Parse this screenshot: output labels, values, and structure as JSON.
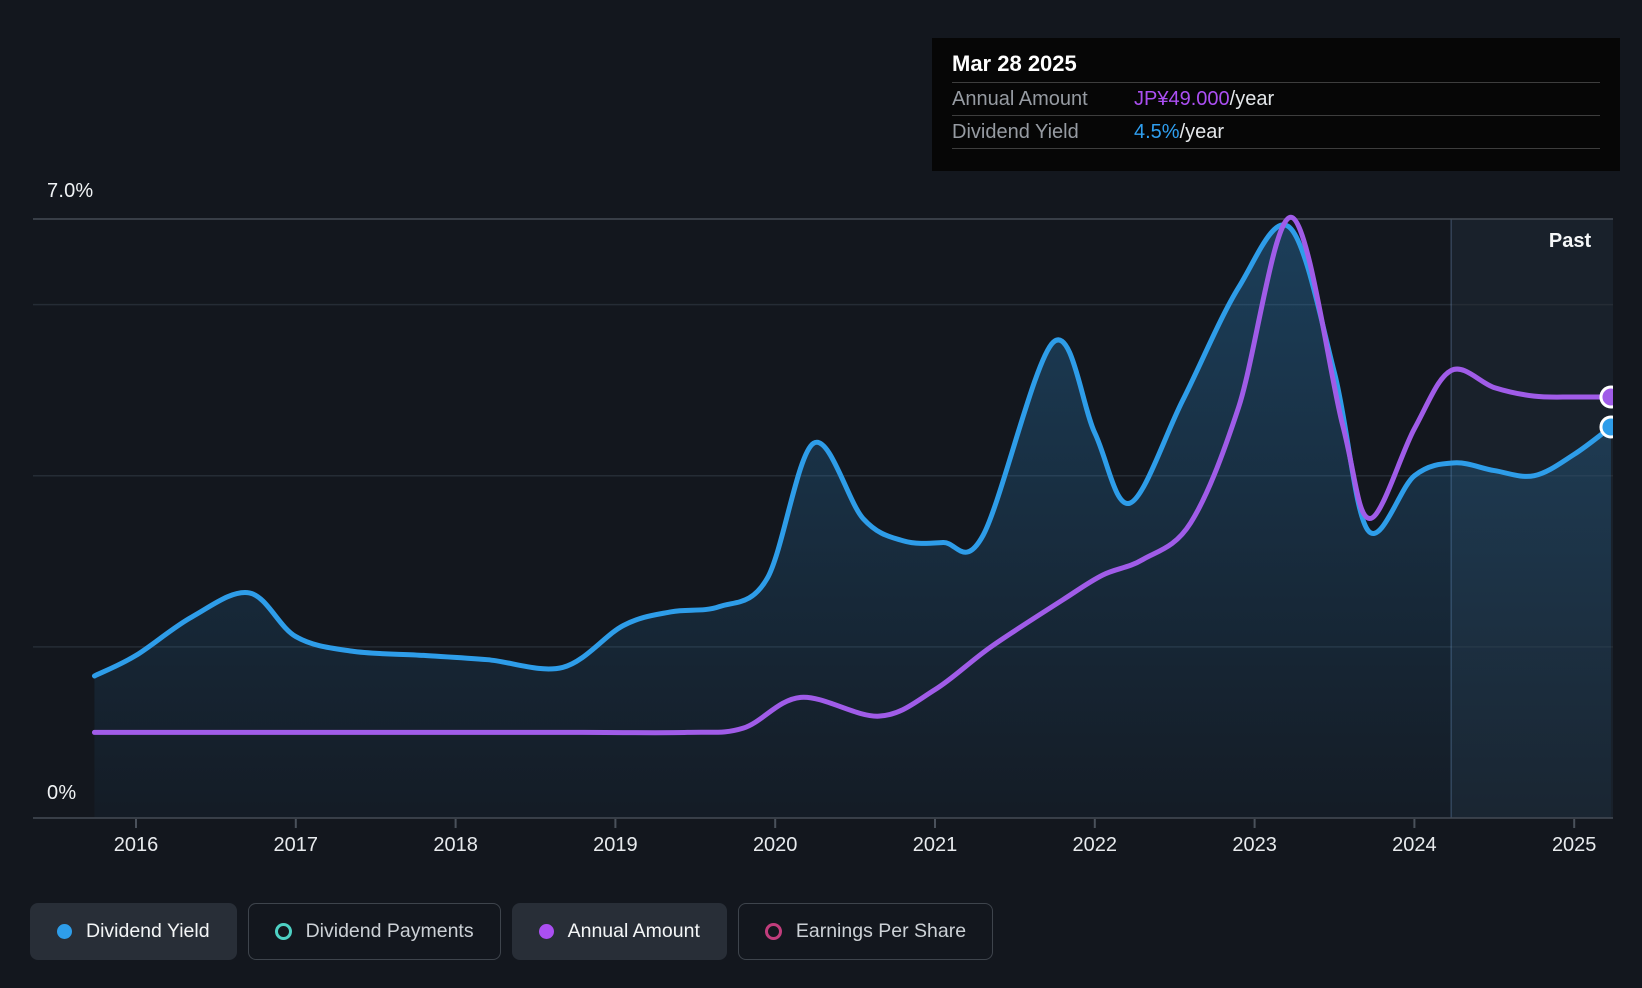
{
  "past_label": "Past",
  "tooltip": {
    "date": "Mar 28 2025",
    "rows": [
      {
        "label": "Annual Amount",
        "value": "JP¥49.000",
        "suffix": "/year",
        "color": "#ab4ff2"
      },
      {
        "label": "Dividend Yield",
        "value": "4.5%",
        "suffix": "/year",
        "color": "#2f9ff0"
      }
    ]
  },
  "legend": [
    {
      "label": "Dividend Yield",
      "color": "#2e9de9",
      "marker": "filled",
      "active": true
    },
    {
      "label": "Dividend Payments",
      "color": "#4ed1c4",
      "marker": "ring",
      "active": false
    },
    {
      "label": "Annual Amount",
      "color": "#ab4ff2",
      "marker": "filled",
      "active": true
    },
    {
      "label": "Earnings Per Share",
      "color": "#c13d7c",
      "marker": "ring",
      "active": false
    }
  ],
  "chart_data": {
    "type": "area",
    "title": "Dividend yield and annual amount history",
    "x_axis": {
      "ticks": [
        2016,
        2017,
        2018,
        2019,
        2020,
        2021,
        2022,
        2023,
        2024,
        2025
      ],
      "range": [
        2015.74,
        2025.23
      ]
    },
    "y_axis": {
      "label_top": "7.0%",
      "label_bottom": "0%",
      "range_pct": [
        0,
        7
      ],
      "gridlines_pct": [
        2,
        4,
        6
      ],
      "edge_lines_pct": [
        0,
        7
      ]
    },
    "past_band_start_x": 2024.23,
    "colors": {
      "dividend_yield_line": "#2e9de9",
      "annual_amount_line": "#a05ce8",
      "area_fill_top": "rgba(46,145,215,0.32)",
      "area_fill_bottom": "rgba(46,145,215,0.04)",
      "past_band": "rgba(110,168,228,0.07)",
      "past_band_line": "rgba(130,170,215,0.28)",
      "grid_minor": "#252c35",
      "grid_major": "#444b55",
      "tick": "#4a515b"
    },
    "series": [
      {
        "name": "Dividend Yield",
        "unit": "percent",
        "style": "area",
        "color": "#2e9de9",
        "end_marker": true,
        "end_value_label": "4.5%/year",
        "points": [
          [
            2015.74,
            1.66
          ],
          [
            2016.0,
            1.9
          ],
          [
            2016.35,
            2.35
          ],
          [
            2016.71,
            2.63
          ],
          [
            2017.0,
            2.12
          ],
          [
            2017.35,
            1.95
          ],
          [
            2017.8,
            1.9
          ],
          [
            2018.2,
            1.85
          ],
          [
            2018.67,
            1.76
          ],
          [
            2019.05,
            2.25
          ],
          [
            2019.35,
            2.41
          ],
          [
            2019.65,
            2.47
          ],
          [
            2019.95,
            2.8
          ],
          [
            2020.24,
            4.38
          ],
          [
            2020.55,
            3.5
          ],
          [
            2020.8,
            3.24
          ],
          [
            2021.05,
            3.22
          ],
          [
            2021.3,
            3.3
          ],
          [
            2021.74,
            5.56
          ],
          [
            2022.0,
            4.5
          ],
          [
            2022.22,
            3.68
          ],
          [
            2022.55,
            4.88
          ],
          [
            2022.9,
            6.2
          ],
          [
            2023.22,
            6.9
          ],
          [
            2023.5,
            5.2
          ],
          [
            2023.71,
            3.36
          ],
          [
            2024.0,
            4.0
          ],
          [
            2024.25,
            4.15
          ],
          [
            2024.5,
            4.06
          ],
          [
            2024.75,
            4.0
          ],
          [
            2025.0,
            4.25
          ],
          [
            2025.23,
            4.57
          ]
        ]
      },
      {
        "name": "Annual Amount",
        "unit": "yield-equivalent percent (JP¥ amount scaled)",
        "style": "line",
        "color": "#a05ce8",
        "end_marker": true,
        "end_value_label": "JP¥49.000/year",
        "points": [
          [
            2015.74,
            1.0
          ],
          [
            2016.5,
            1.0
          ],
          [
            2017.2,
            1.0
          ],
          [
            2018.0,
            1.0
          ],
          [
            2018.8,
            1.0
          ],
          [
            2019.45,
            1.0
          ],
          [
            2019.8,
            1.05
          ],
          [
            2020.16,
            1.41
          ],
          [
            2020.65,
            1.19
          ],
          [
            2021.0,
            1.5
          ],
          [
            2021.35,
            2.0
          ],
          [
            2021.8,
            2.55
          ],
          [
            2022.05,
            2.84
          ],
          [
            2022.3,
            3.02
          ],
          [
            2022.6,
            3.45
          ],
          [
            2022.9,
            4.8
          ],
          [
            2023.23,
            7.02
          ],
          [
            2023.55,
            4.6
          ],
          [
            2023.72,
            3.5
          ],
          [
            2024.0,
            4.55
          ],
          [
            2024.23,
            5.23
          ],
          [
            2024.5,
            5.03
          ],
          [
            2024.75,
            4.93
          ],
          [
            2025.0,
            4.92
          ],
          [
            2025.23,
            4.92
          ]
        ]
      }
    ]
  }
}
